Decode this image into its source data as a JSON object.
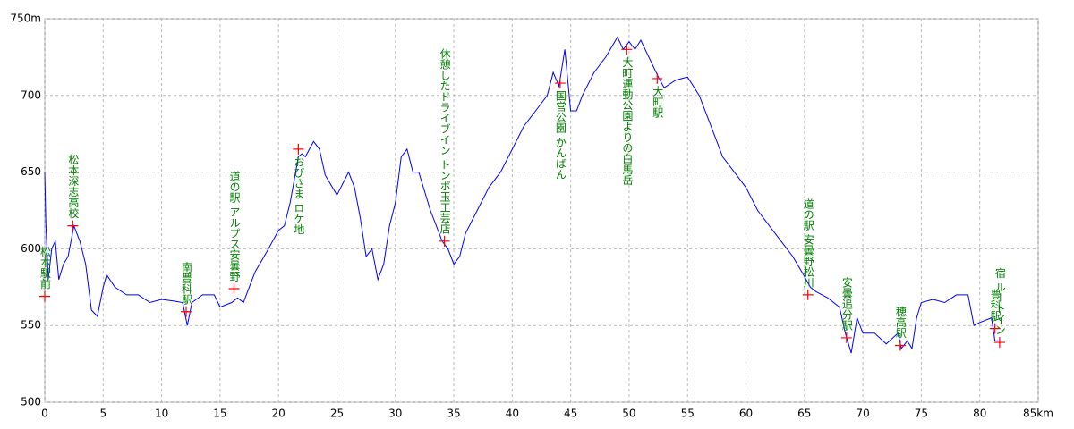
{
  "chart_data": {
    "type": "line",
    "x": [
      0,
      0.1,
      0.3,
      0.6,
      0.9,
      1.2,
      1.6,
      2.0,
      2.5,
      3.0,
      3.5,
      4.0,
      4.5,
      5.0,
      5.3,
      6,
      7,
      8,
      9,
      10,
      11,
      11.8,
      12.2,
      12.6,
      13.5,
      14.5,
      15,
      16,
      16.5,
      17,
      17.5,
      18,
      19,
      20,
      20.5,
      21,
      21.7,
      22,
      22.3,
      23,
      23.5,
      24,
      25,
      26,
      26.5,
      27,
      27.5,
      28,
      28.5,
      29,
      29.5,
      30,
      30.5,
      31,
      31.5,
      32,
      33,
      33.5,
      34,
      34.5,
      35,
      35.5,
      36,
      37,
      38,
      39,
      40,
      41,
      42,
      43,
      43.5,
      44,
      44.5,
      45,
      45.5,
      46,
      47,
      48,
      49,
      49.5,
      50,
      50.5,
      51,
      51.5,
      52,
      52.5,
      53,
      54,
      55,
      56,
      57,
      58,
      59,
      60,
      61,
      62,
      63,
      64,
      65,
      65.5,
      66,
      67,
      68,
      68.5,
      69,
      69.5,
      70,
      71,
      72,
      73,
      73.3,
      73.8,
      74.2,
      74.6,
      75,
      76,
      77,
      78,
      79,
      79.5,
      80,
      81,
      81.3,
      81.6
    ],
    "series": [
      {
        "color": "#0000ff",
        "values": [
          650,
          615,
          580,
          600,
          605,
          580,
          590,
          595,
          615,
          605,
          590,
          560,
          556,
          575,
          583,
          575,
          570,
          570,
          565,
          567,
          566,
          565,
          550,
          565,
          570,
          570,
          562,
          565,
          568,
          565,
          575,
          585,
          598,
          612,
          615,
          630,
          660,
          662,
          660,
          670,
          665,
          648,
          635,
          650,
          640,
          620,
          595,
          600,
          580,
          590,
          615,
          630,
          660,
          665,
          650,
          650,
          625,
          615,
          605,
          600,
          590,
          595,
          610,
          625,
          640,
          650,
          665,
          680,
          690,
          700,
          715,
          706,
          730,
          690,
          690,
          700,
          715,
          725,
          738,
          730,
          735,
          730,
          736,
          728,
          720,
          712,
          705,
          710,
          712,
          700,
          680,
          660,
          650,
          640,
          625,
          615,
          605,
          595,
          582,
          575,
          572,
          568,
          562,
          545,
          532,
          555,
          545,
          545,
          538,
          545,
          535,
          540,
          535,
          555,
          565,
          567,
          565,
          570,
          570,
          550,
          552,
          555,
          540,
          540
        ]
      }
    ],
    "waypoints": [
      {
        "name": "松本駅前",
        "x": 0,
        "y": 569
      },
      {
        "name": "松本深志高校",
        "x": 2.4,
        "y": 615
      },
      {
        "name": "南豊科駅",
        "x": 12.1,
        "y": 559
      },
      {
        "name": "道の駅 アルプス安曇野",
        "x": 16.2,
        "y": 574
      },
      {
        "name": "おびさま ロケ地",
        "x": 21.7,
        "y": 665
      },
      {
        "name": "休憩したドライブイン トンボ玉工芸店",
        "x": 34.2,
        "y": 605
      },
      {
        "name": "国営公園 かんばん",
        "x": 44.1,
        "y": 708
      },
      {
        "name": "大町運動公園よりの白馬岳",
        "x": 49.8,
        "y": 730
      },
      {
        "name": "大町駅",
        "x": 52.4,
        "y": 711
      },
      {
        "name": "道の駅 安曇野松川",
        "x": 65.3,
        "y": 570
      },
      {
        "name": "安曇追分駅",
        "x": 68.6,
        "y": 542
      },
      {
        "name": "穂高駅",
        "x": 73.2,
        "y": 537
      },
      {
        "name": "豊科駅",
        "x": 81.3,
        "y": 548
      },
      {
        "name": "宿 ルートイン",
        "x": 81.7,
        "y": 539
      }
    ],
    "marker_color": "#ff0000",
    "label_color": "#008000",
    "xlim": [
      0,
      85
    ],
    "ylim": [
      500,
      750
    ],
    "xticks": [
      0,
      5,
      10,
      15,
      20,
      25,
      30,
      35,
      40,
      45,
      50,
      55,
      60,
      65,
      70,
      75,
      80,
      {
        "value": 85,
        "label": "85km"
      }
    ],
    "yticks": [
      500,
      550,
      600,
      650,
      700,
      {
        "value": 750,
        "label": "750m"
      }
    ],
    "grid": true
  }
}
